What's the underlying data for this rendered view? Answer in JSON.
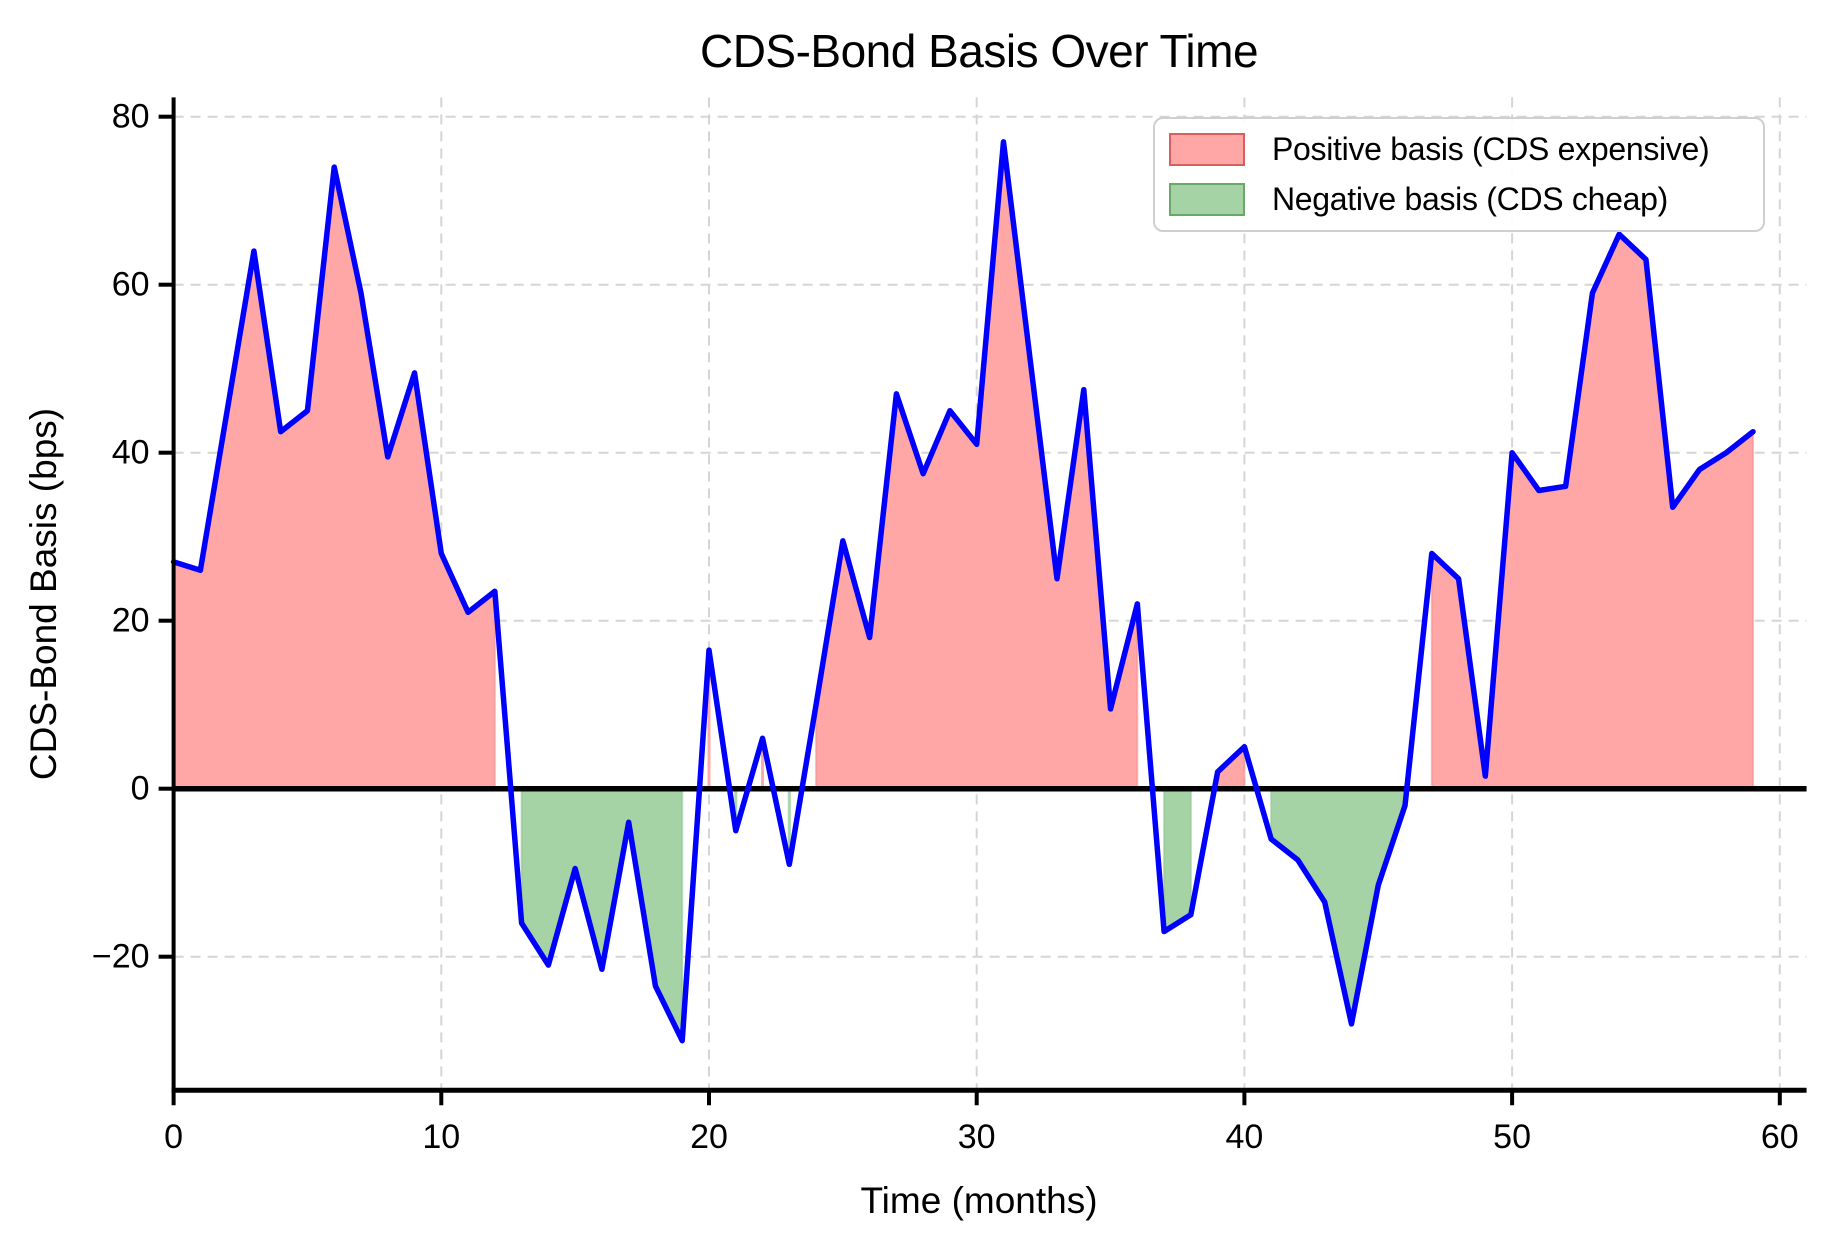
{
  "title": "CDS-Bond Basis Over Time",
  "axes": {
    "xlabel": "Time (months)",
    "ylabel": "CDS-Bond Basis (bps)",
    "xtick_labels": [
      "0",
      "10",
      "20",
      "30",
      "40",
      "50",
      "60"
    ],
    "ytick_labels": [
      "−20",
      "0",
      "20",
      "40",
      "60",
      "80"
    ]
  },
  "legend": {
    "items": [
      {
        "label": "Positive basis (CDS expensive)",
        "fill": "#ffa6a6",
        "border": "#d95f5f"
      },
      {
        "label": "Negative basis (CDS cheap)",
        "fill": "#a6d3a6",
        "border": "#69a869"
      }
    ]
  },
  "chart_data": {
    "type": "area",
    "title": "CDS-Bond Basis Over Time",
    "xlabel": "Time (months)",
    "ylabel": "CDS-Bond Basis (bps)",
    "x": [
      0,
      1,
      2,
      3,
      4,
      5,
      6,
      7,
      8,
      9,
      10,
      11,
      12,
      13,
      14,
      15,
      16,
      17,
      18,
      19,
      20,
      21,
      22,
      23,
      24,
      25,
      26,
      27,
      28,
      29,
      30,
      31,
      32,
      33,
      34,
      35,
      36,
      37,
      38,
      39,
      40,
      41,
      42,
      43,
      44,
      45,
      46,
      47,
      48,
      49,
      50,
      51,
      52,
      53,
      54,
      55,
      56,
      57,
      58,
      59
    ],
    "values": [
      27,
      26,
      45,
      64,
      42.5,
      45,
      74,
      59,
      39.5,
      49.5,
      28,
      21,
      23.5,
      -16,
      -21,
      -9.5,
      -21.5,
      -4,
      -23.5,
      -30,
      16.5,
      -5,
      6,
      -9,
      10,
      29.5,
      18,
      47,
      37.5,
      45,
      41,
      77,
      51,
      25,
      47.5,
      9.5,
      22,
      -17,
      -15,
      2,
      5,
      -6,
      -8.5,
      -13.5,
      -28,
      -11.5,
      -2,
      28,
      25,
      1.5,
      40,
      35.5,
      36,
      59,
      66,
      63,
      33.5,
      38,
      40,
      42.5
    ],
    "xlim": [
      0,
      61
    ],
    "ylim": [
      -35.9,
      82.3
    ],
    "xticks": [
      0,
      10,
      20,
      30,
      40,
      50,
      60
    ],
    "yticks": [
      -20,
      0,
      20,
      40,
      60,
      80
    ],
    "grid": true,
    "legend_position": "upper right",
    "line_color": "#0000ff",
    "positive_fill": "#ffa6a6",
    "positive_edge": "#f58f8f",
    "negative_fill": "#a6d3a6",
    "negative_edge": "#90c390",
    "zero_line_color": "#000000",
    "zero_line_value": 0
  }
}
